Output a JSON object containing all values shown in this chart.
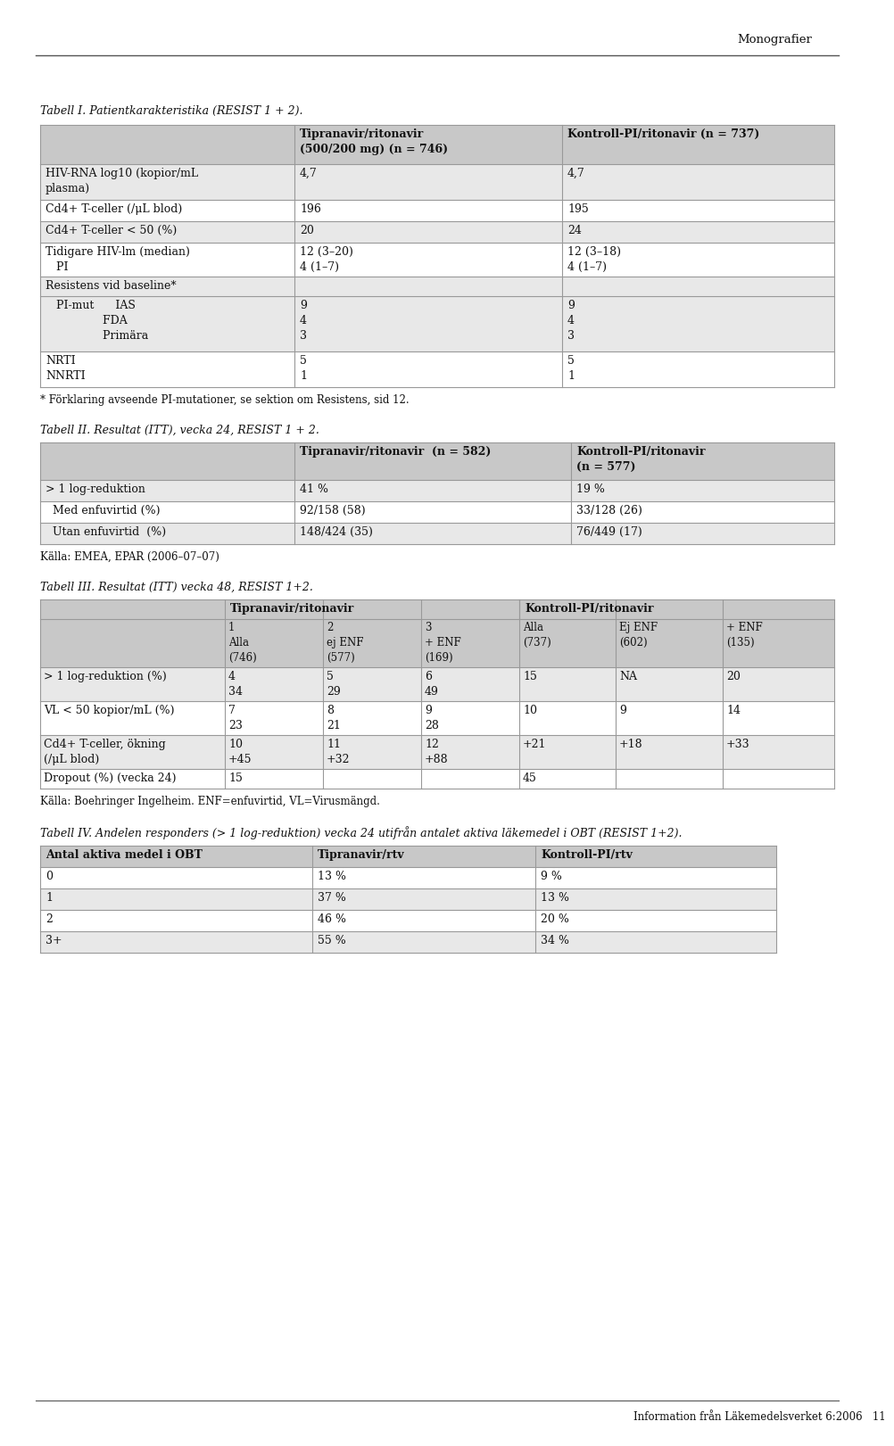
{
  "page_bg": "#ffffff",
  "header_text": "Monografier",
  "table1_title": "Tabell I. Patientkarakteristika (RESIST 1 + 2).",
  "table1_col_headers": [
    "",
    "Tipranavir/ritonavir\n(500/200 mg) (n = 746)",
    "Kontroll-PI/ritonavir (n = 737)"
  ],
  "table1_rows": [
    [
      "HIV-RNA log10 (kopior/mL\nplasma)",
      "4,7",
      "4,7"
    ],
    [
      "Cd4+ T-celler (/μL blod)",
      "196",
      "195"
    ],
    [
      "Cd4+ T-celler < 50 (%)",
      "20",
      "24"
    ],
    [
      "Tidigare HIV-lm (median)\n   PI",
      "12 (3–20)\n4 (1–7)",
      "12 (3–18)\n4 (1–7)"
    ],
    [
      "Resistens vid baseline*",
      "",
      ""
    ],
    [
      "   PI-mut      IAS\n                FDA\n                Primära",
      "9\n4\n3",
      "9\n4\n3"
    ],
    [
      "NRTI\nNNRTI",
      "5\n1",
      "5\n1"
    ]
  ],
  "table1_footnote": "* Förklaring avseende PI-mutationer, se sektion om Resistens, sid 12.",
  "table2_title": "Tabell II. Resultat (ITT), vecka 24, RESIST 1 + 2.",
  "table2_col_headers": [
    "",
    "Tipranavir/ritonavir  (n = 582)",
    "Kontroll-PI/ritonavir\n(n = 577)"
  ],
  "table2_rows": [
    [
      "> 1 log-reduktion",
      "41 %",
      "19 %"
    ],
    [
      "  Med enfuvirtid (%)",
      "92/158 (58)",
      "33/128 (26)"
    ],
    [
      "  Utan enfuvirtid  (%)",
      "148/424 (35)",
      "76/449 (17)"
    ]
  ],
  "table2_footnote": "Källa: EMEA, EPAR (2006–07–07)",
  "table3_title": "Tabell III. Resultat (ITT) vecka 48, RESIST 1+2.",
  "table3_col_headers_bot": [
    "",
    "1\nAlla\n(746)",
    "2\nej ENF\n(577)",
    "3\n+ ENF\n(169)",
    "Alla\n(737)",
    "Ej ENF\n(602)",
    "+ ENF\n(135)"
  ],
  "table3_rows": [
    [
      "> 1 log-reduktion (%)",
      "4\n34",
      "5\n29",
      "6\n49",
      "15",
      "NA",
      "20"
    ],
    [
      "VL < 50 kopior/mL (%)",
      "7\n23",
      "8\n21",
      "9\n28",
      "10",
      "9",
      "14"
    ],
    [
      "Cd4+ T-celler, ökning\n(/μL blod)",
      "10\n+45",
      "11\n+32",
      "12\n+88",
      "+21",
      "+18",
      "+33"
    ],
    [
      "Dropout (%) (vecka 24)",
      "15",
      "",
      "",
      "45",
      "",
      ""
    ]
  ],
  "table3_footnote": "Källa: Boehringer Ingelheim. ENF=enfuvirtid, VL=Vируsmängd.",
  "table4_title": "Tabell IV. Andelen responders (> 1 log-reduktion) vecka 24 utifrån antalet aktiva läkemedel i OBT (RESIST 1+2).",
  "table4_col_headers": [
    "Antal aktiva medel i OBT",
    "Tipranavir/rtv",
    "Kontroll-PI/rtv"
  ],
  "table4_rows": [
    [
      "0",
      "13 %",
      "9 %"
    ],
    [
      "1",
      "37 %",
      "13 %"
    ],
    [
      "2",
      "46 %",
      "20 %"
    ],
    [
      "3+",
      "55 %",
      "34 %"
    ]
  ],
  "footer_text": "Information från Läkemedelsverket 6:2006   11",
  "bg_row_light": "#e8e8e8",
  "bg_row_white": "#ffffff",
  "bg_header": "#c8c8c8",
  "border_color": "#999999",
  "text_color": "#111111"
}
